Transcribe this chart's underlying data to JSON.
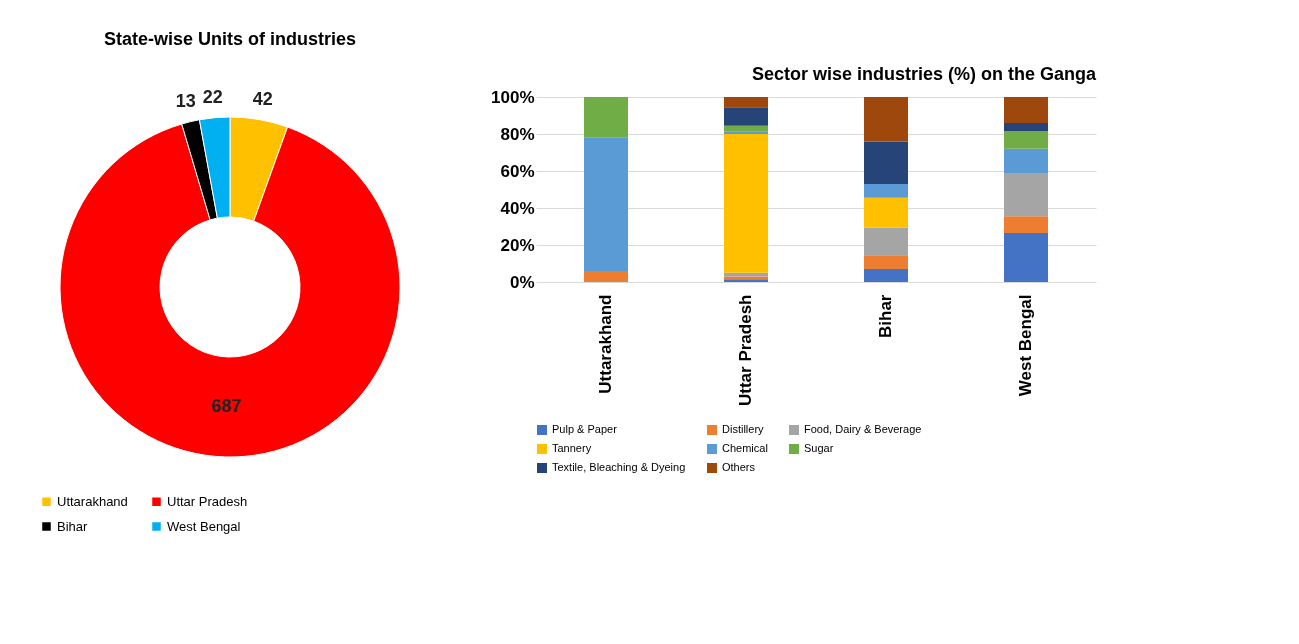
{
  "chart_data": [
    {
      "type": "donut",
      "title": "State-wise Units of industries",
      "categories": [
        "Uttarakhand",
        "Uttar Pradesh",
        "Bihar",
        "West Bengal"
      ],
      "values": [
        42,
        687,
        13,
        22
      ],
      "colors": [
        "#ffc000",
        "#ff0000",
        "#000000",
        "#00b0f0"
      ],
      "data_labels": true,
      "legend": "bottom"
    },
    {
      "type": "bar",
      "stacked": true,
      "title": "Sector wise industries (%) on the Ganga",
      "categories": [
        "Uttarakhand",
        "Uttar Pradesh",
        "Bihar",
        "West Bengal"
      ],
      "series": [
        {
          "name": "Pulp & Paper",
          "color": "#4472c4",
          "values": [
            0,
            1.5,
            7,
            26.5
          ]
        },
        {
          "name": "Distillery",
          "color": "#ed7d31",
          "values": [
            6,
            1.5,
            7.5,
            9
          ]
        },
        {
          "name": "Food, Dairy & Beverage",
          "color": "#a5a5a5",
          "values": [
            0,
            2,
            15,
            23
          ]
        },
        {
          "name": "Tannery",
          "color": "#ffc000",
          "values": [
            0,
            75,
            16,
            0
          ]
        },
        {
          "name": "Chemical",
          "color": "#5b9bd5",
          "values": [
            72,
            1.5,
            7.5,
            13.5
          ]
        },
        {
          "name": "Sugar",
          "color": "#70ad47",
          "values": [
            22,
            3,
            0,
            9.5
          ]
        },
        {
          "name": "Textile, Bleaching & Dyeing",
          "color": "#264478",
          "values": [
            0,
            10,
            23,
            4.5
          ]
        },
        {
          "name": "Others",
          "color": "#9e480e",
          "values": [
            0,
            5.5,
            24,
            14
          ]
        }
      ],
      "ylim": [
        0,
        100
      ],
      "yticks": [
        {
          "value": 0,
          "label": "0%"
        },
        {
          "value": 20,
          "label": "20%"
        },
        {
          "value": 40,
          "label": "40%"
        },
        {
          "value": 60,
          "label": "60%"
        },
        {
          "value": 80,
          "label": "80%"
        },
        {
          "value": 100,
          "label": "100%"
        }
      ],
      "grid": "y",
      "legend": "bottom"
    }
  ]
}
